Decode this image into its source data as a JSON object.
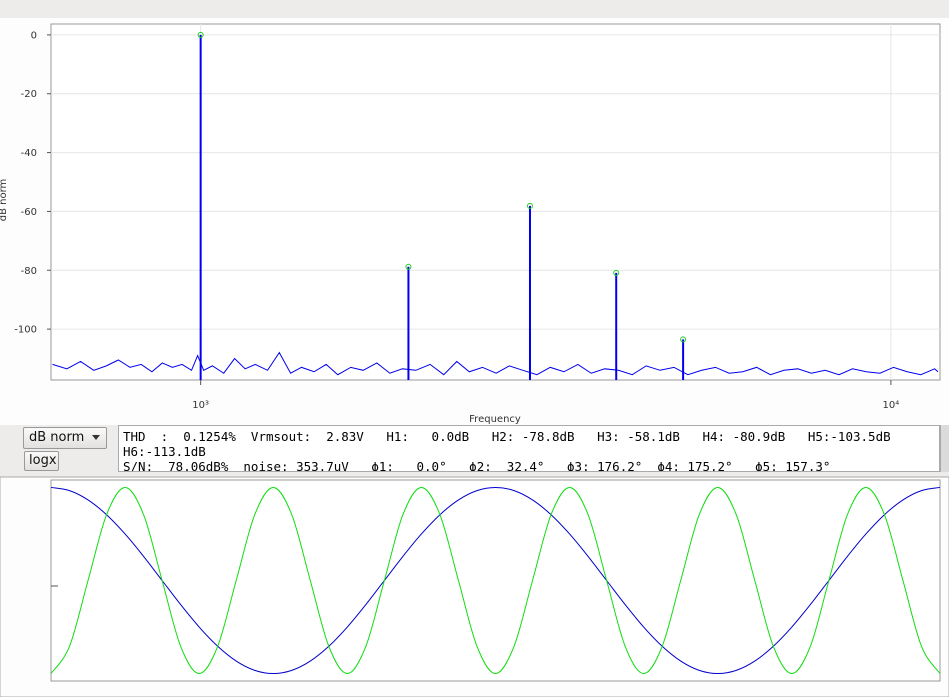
{
  "window": {
    "controls": {
      "mode": "dB norm",
      "logx": "logx"
    },
    "readout": [
      "THD  :  0.1254%  Vrmsout:  2.83V   H1:   0.0dB   H2: -78.8dB   H3: -58.1dB   H4: -80.9dB   H5:-103.5dB",
      "H6:-113.1dB",
      "S/N:  78.06dB%  noise: 353.7uV   ϕ1:   0.0°   ϕ2:  32.4°   ϕ3: 176.2°  ϕ4: 175.2°   ϕ5: 157.3°"
    ]
  },
  "chart_data": [
    {
      "type": "spectrum",
      "ylabel": "dB norm",
      "xlabel": "Frequency",
      "log_x": true,
      "grid": true,
      "xlim": [
        607,
        11780
      ],
      "ylim": [
        -117.3,
        3.7
      ],
      "xticks": [
        {
          "value": 1000,
          "label": "10³"
        },
        {
          "value": 10000,
          "label": "10⁴"
        }
      ],
      "yticks": [
        0,
        -20,
        -40,
        -60,
        -80,
        -100
      ],
      "trace": {
        "color": "#0000ee",
        "x": [
          610,
          640,
          670,
          700,
          730,
          760,
          790,
          820,
          850,
          880,
          910,
          940,
          970,
          990,
          1010,
          1040,
          1080,
          1120,
          1160,
          1200,
          1250,
          1300,
          1350,
          1400,
          1460,
          1520,
          1580,
          1650,
          1720,
          1800,
          1880,
          1960,
          2050,
          2150,
          2250,
          2350,
          2450,
          2560,
          2680,
          2800,
          2930,
          3070,
          3210,
          3360,
          3520,
          3680,
          3850,
          4030,
          4220,
          4420,
          4630,
          4850,
          5080,
          5320,
          5570,
          5830,
          6100,
          6390,
          6690,
          7000,
          7330,
          7670,
          8030,
          8410,
          8800,
          9210,
          9640,
          10090,
          10560,
          11050,
          11570,
          11700
        ],
        "values": [
          -112,
          -113.5,
          -111,
          -114,
          -112.5,
          -110.5,
          -113,
          -112,
          -114.5,
          -111.5,
          -113,
          -112,
          -114,
          -109,
          -114,
          -112.5,
          -115,
          -110,
          -113.5,
          -112,
          -114,
          -108,
          -115,
          -113,
          -114.5,
          -112,
          -115.5,
          -113,
          -114,
          -111.5,
          -115,
          -113.5,
          -114,
          -112,
          -115.5,
          -111,
          -114.5,
          -113,
          -115,
          -112.5,
          -114,
          -115.5,
          -113,
          -114.5,
          -112,
          -115,
          -113.5,
          -114,
          -115.5,
          -112.5,
          -114,
          -113,
          -115.5,
          -114,
          -113,
          -115,
          -114.5,
          -113,
          -115.5,
          -114,
          -113.5,
          -115,
          -114,
          -115.5,
          -113.5,
          -114.5,
          -115,
          -113,
          -114.5,
          -115.5,
          -113.5,
          -114.5
        ]
      },
      "harmonics": {
        "color": "#0000ee",
        "marker_color": "#22cc22",
        "x": [
          1000,
          2000,
          3000,
          4000,
          5000
        ],
        "values": [
          0,
          -78.8,
          -58.1,
          -80.9,
          -103.5
        ]
      }
    },
    {
      "type": "line",
      "xlim": [
        0,
        48
      ],
      "ylim": [
        -1.08,
        1.08
      ],
      "x": [
        0,
        1,
        2,
        3,
        4,
        5,
        6,
        7,
        8,
        9,
        10,
        11,
        12,
        13,
        14,
        15,
        16,
        17,
        18,
        19,
        20,
        21,
        22,
        23,
        24,
        25,
        26,
        27,
        28,
        29,
        30,
        31,
        32,
        33,
        34,
        35,
        36,
        37,
        38,
        39,
        40,
        41,
        42,
        43,
        44,
        45,
        46,
        47,
        48
      ],
      "series": [
        {
          "color": "#0000cc",
          "values": [
            1,
            0.966,
            0.866,
            0.707,
            0.5,
            0.259,
            0,
            -0.259,
            -0.5,
            -0.707,
            -0.866,
            -0.966,
            -1,
            -0.966,
            -0.866,
            -0.707,
            -0.5,
            -0.259,
            0,
            0.259,
            0.5,
            0.707,
            0.866,
            0.966,
            1,
            0.966,
            0.866,
            0.707,
            0.5,
            0.259,
            0,
            -0.259,
            -0.5,
            -0.707,
            -0.866,
            -0.966,
            -1,
            -0.966,
            -0.866,
            -0.707,
            -0.5,
            -0.259,
            0,
            0.259,
            0.5,
            0.707,
            0.866,
            0.966,
            1
          ]
        },
        {
          "color": "#11dd11",
          "values": [
            -1,
            -0.707,
            0,
            0.707,
            1,
            0.707,
            0,
            -0.707,
            -1,
            -0.707,
            0,
            0.707,
            1,
            0.707,
            0,
            -0.707,
            -1,
            -0.707,
            0,
            0.707,
            1,
            0.707,
            0,
            -0.707,
            -1,
            -0.707,
            0,
            0.707,
            1,
            0.707,
            0,
            -0.707,
            -1,
            -0.707,
            0,
            0.707,
            1,
            0.707,
            0,
            -0.707,
            -1,
            -0.707,
            0,
            0.707,
            1,
            0.707,
            0,
            -0.707,
            -1
          ]
        }
      ]
    }
  ]
}
